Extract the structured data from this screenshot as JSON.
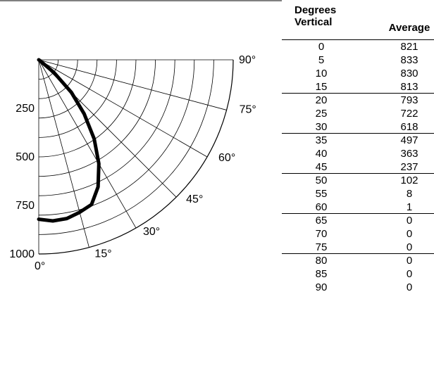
{
  "chart_data": {
    "type": "line",
    "subtype": "polar-quarter",
    "radial_ticks": [
      "250",
      "500",
      "750",
      "1000"
    ],
    "angle_labels": [
      "0°",
      "15°",
      "30°",
      "45°",
      "60°",
      "75°",
      "90°"
    ],
    "rmax": 1000,
    "series": [
      {
        "x": [
          0,
          5,
          10,
          15,
          20,
          25,
          30,
          35,
          40,
          45,
          50,
          55,
          60,
          65,
          70,
          75,
          80,
          85,
          90
        ],
        "values": [
          821,
          833,
          830,
          813,
          793,
          722,
          618,
          497,
          363,
          237,
          102,
          8,
          1,
          0,
          0,
          0,
          0,
          0,
          0
        ]
      }
    ]
  },
  "table": {
    "header_col1": "Degrees Vertical",
    "header_col1_line1": "Degrees",
    "header_col1_line2": "Vertical",
    "header_col2": "Average",
    "rows": [
      [
        "0",
        "821"
      ],
      [
        "5",
        "833"
      ],
      [
        "10",
        "830"
      ],
      [
        "15",
        "813"
      ],
      [
        "20",
        "793"
      ],
      [
        "25",
        "722"
      ],
      [
        "30",
        "618"
      ],
      [
        "35",
        "497"
      ],
      [
        "40",
        "363"
      ],
      [
        "45",
        "237"
      ],
      [
        "50",
        "102"
      ],
      [
        "55",
        "8"
      ],
      [
        "60",
        "1"
      ],
      [
        "65",
        "0"
      ],
      [
        "70",
        "0"
      ],
      [
        "75",
        "0"
      ],
      [
        "80",
        "0"
      ],
      [
        "85",
        "0"
      ],
      [
        "90",
        "0"
      ]
    ]
  }
}
